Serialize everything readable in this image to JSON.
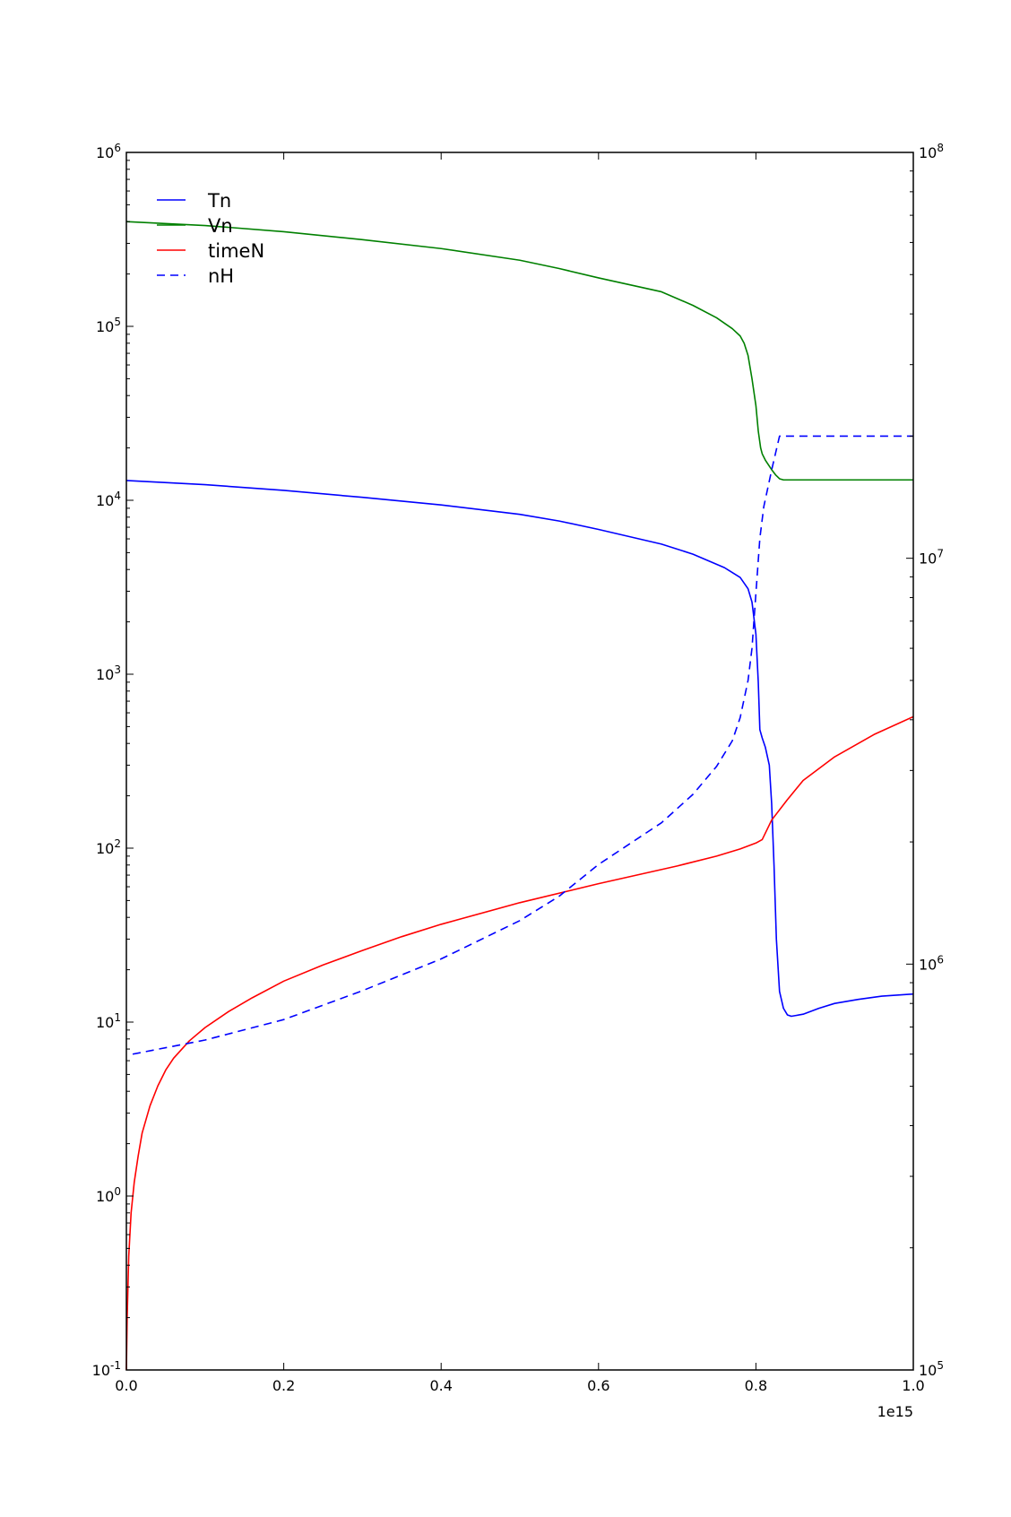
{
  "chart_data": {
    "type": "line",
    "title": "",
    "xlabel": "",
    "ylabel": "",
    "x_offset_label": "1e15",
    "xlim": [
      0.0,
      1.0
    ],
    "x_scale_factor": "1e15",
    "left_axis": {
      "scale": "log",
      "ylim": [
        0.1,
        1000000
      ]
    },
    "right_axis": {
      "scale": "log",
      "ylim": [
        100000,
        100000000
      ]
    },
    "x_ticks": [
      "0.0",
      "0.2",
      "0.4",
      "0.6",
      "0.8",
      "1.0"
    ],
    "left_ticks": [
      {
        "value": 0.1,
        "base": "10",
        "exp": "-1"
      },
      {
        "value": 1,
        "base": "10",
        "exp": "0"
      },
      {
        "value": 10,
        "base": "10",
        "exp": "1"
      },
      {
        "value": 100,
        "base": "10",
        "exp": "2"
      },
      {
        "value": 1000,
        "base": "10",
        "exp": "3"
      },
      {
        "value": 10000,
        "base": "10",
        "exp": "4"
      },
      {
        "value": 100000,
        "base": "10",
        "exp": "5"
      },
      {
        "value": 1000000,
        "base": "10",
        "exp": "6"
      }
    ],
    "right_ticks": [
      {
        "value": 100000,
        "base": "10",
        "exp": "5"
      },
      {
        "value": 1000000,
        "base": "10",
        "exp": "6"
      },
      {
        "value": 10000000,
        "base": "10",
        "exp": "7"
      },
      {
        "value": 100000000,
        "base": "10",
        "exp": "8"
      }
    ],
    "grid": false,
    "legend_position": "top-left",
    "series": [
      {
        "name": "Tn",
        "axis": "left",
        "color": "#0000ff",
        "dash": "solid",
        "x": [
          0.0,
          0.1,
          0.2,
          0.3,
          0.4,
          0.5,
          0.55,
          0.6,
          0.68,
          0.72,
          0.76,
          0.78,
          0.79,
          0.795,
          0.8,
          0.803,
          0.805,
          0.808,
          0.812,
          0.817,
          0.82,
          0.823,
          0.826,
          0.83,
          0.835,
          0.84,
          0.845,
          0.85,
          0.86,
          0.88,
          0.9,
          0.93,
          0.96,
          1.0
        ],
        "y": [
          13000,
          12300,
          11400,
          10400,
          9400,
          8300,
          7600,
          6800,
          5600,
          4900,
          4100,
          3600,
          3100,
          2600,
          1700,
          900,
          480,
          430,
          380,
          300,
          180,
          80,
          30,
          15,
          12,
          11,
          10.8,
          10.9,
          11.1,
          12,
          12.8,
          13.5,
          14.1,
          14.5
        ]
      },
      {
        "name": "Vn",
        "axis": "left",
        "color": "#008000",
        "dash": "solid",
        "x": [
          0.0,
          0.1,
          0.2,
          0.3,
          0.4,
          0.5,
          0.55,
          0.6,
          0.68,
          0.72,
          0.75,
          0.77,
          0.78,
          0.785,
          0.79,
          0.795,
          0.8,
          0.803,
          0.806,
          0.808,
          0.812,
          0.82,
          0.825,
          0.83,
          0.835,
          0.85,
          0.9,
          1.0
        ],
        "y": [
          400000,
          380000,
          350000,
          315000,
          280000,
          240000,
          215000,
          190000,
          158000,
          132000,
          112000,
          97000,
          88000,
          80000,
          68000,
          50000,
          35000,
          25000,
          20000,
          18500,
          17000,
          15000,
          14000,
          13300,
          13100,
          13100,
          13100,
          13100
        ]
      },
      {
        "name": "timeN",
        "axis": "left",
        "color": "#ff0000",
        "dash": "solid",
        "x": [
          0.0,
          0.001,
          0.003,
          0.006,
          0.01,
          0.015,
          0.02,
          0.03,
          0.04,
          0.05,
          0.06,
          0.08,
          0.1,
          0.13,
          0.16,
          0.2,
          0.25,
          0.3,
          0.35,
          0.4,
          0.5,
          0.6,
          0.7,
          0.75,
          0.78,
          0.8,
          0.808,
          0.82,
          0.84,
          0.86,
          0.9,
          0.95,
          1.0
        ],
        "y": [
          0.1,
          0.2,
          0.45,
          0.8,
          1.2,
          1.7,
          2.3,
          3.3,
          4.3,
          5.3,
          6.2,
          7.8,
          9.3,
          11.5,
          13.8,
          17.2,
          21.3,
          25.8,
          31,
          36.5,
          48.6,
          62.5,
          79,
          90,
          99,
          107,
          112,
          145,
          190,
          245,
          335,
          450,
          570
        ]
      },
      {
        "name": "nH",
        "axis": "right",
        "color": "#0000ff",
        "dash": "dashed",
        "x": [
          0.008,
          0.1,
          0.2,
          0.3,
          0.4,
          0.5,
          0.55,
          0.6,
          0.68,
          0.72,
          0.75,
          0.77,
          0.78,
          0.79,
          0.795,
          0.8,
          0.805,
          0.81,
          0.82,
          0.83,
          0.835,
          0.84,
          0.9,
          1.0
        ],
        "y": [
          600000,
          650000,
          730000,
          860000,
          1030000,
          1280000,
          1470000,
          1760000,
          2230000,
          2620000,
          3070000,
          3550000,
          4050000,
          5000000,
          6000000,
          8200000,
          11200000,
          13400000,
          16500000,
          20000000,
          20000000,
          20000000,
          20000000,
          20000000
        ]
      }
    ]
  }
}
